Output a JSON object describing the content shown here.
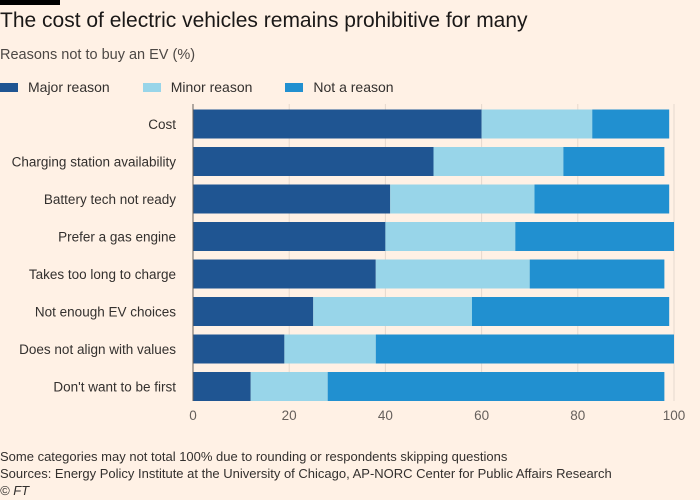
{
  "title": "The cost of electric vehicles remains prohibitive for many",
  "subtitle": "Reasons not to buy an EV (%)",
  "footnote": "Some categories may not total 100% due to rounding or respondents skipping questions",
  "sources": "Sources: Energy Policy Institute at the University of Chicago, AP-NORC Center for Public Affairs Research",
  "credit": "© FT",
  "chart_data": {
    "type": "bar",
    "orientation": "horizontal",
    "stacked": true,
    "title": "The cost of electric vehicles remains prohibitive for many",
    "subtitle": "Reasons not to buy an EV (%)",
    "xlabel": "",
    "ylabel": "",
    "xlim": [
      0,
      100
    ],
    "xticks": [
      0,
      20,
      40,
      60,
      80,
      100
    ],
    "legend_position": "top-left",
    "categories": [
      "Cost",
      "Charging station availability",
      "Battery tech not ready",
      "Prefer a gas engine",
      "Takes too long to charge",
      "Not enough EV choices",
      "Does not align with values",
      "Don't want to be first"
    ],
    "series": [
      {
        "name": "Major reason",
        "color": "#1f5592",
        "values": [
          60,
          50,
          41,
          40,
          38,
          25,
          19,
          12
        ]
      },
      {
        "name": "Minor reason",
        "color": "#98d5e9",
        "values": [
          23,
          27,
          30,
          27,
          32,
          33,
          19,
          16
        ]
      },
      {
        "name": "Not a reason",
        "color": "#2190d0",
        "values": [
          16,
          21,
          28,
          33,
          28,
          41,
          62,
          70
        ]
      }
    ]
  }
}
